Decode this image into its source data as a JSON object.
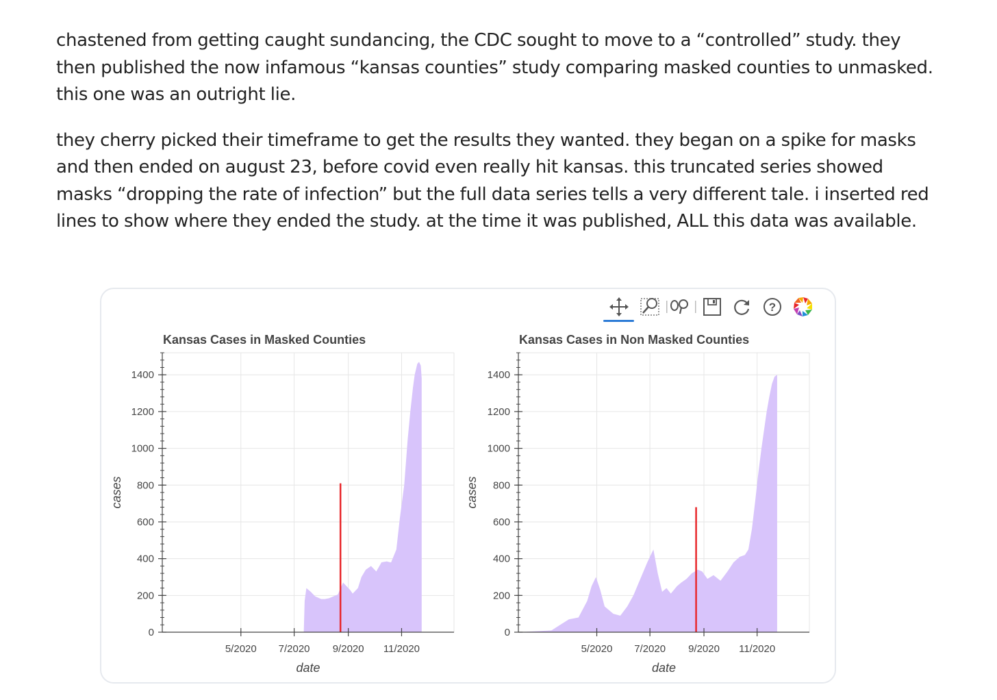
{
  "article": {
    "paragraphs": [
      "chastened from getting caught sundancing, the CDC sought to move to a “controlled” study. they then published the now infamous “kansas counties” study comparing masked counties to unmasked. this one was an outright lie.",
      "they cherry picked their timeframe to get the results they wanted. they began on a spike for masks and then ended on august 23, before covid even really hit kansas. this truncated series showed masks “dropping the rate of infection” but the full data series tells a very different tale. i inserted red lines to show where they ended the study. at the time it was published, ALL this data was available."
    ]
  },
  "toolbar": {
    "tools": [
      "pan-icon",
      "box-zoom-icon",
      "wheel-zoom-icon",
      "save-icon",
      "reset-icon",
      "help-icon",
      "bokeh-logo-icon"
    ],
    "active_tool": "pan-icon",
    "accent": "#2c7bd6"
  },
  "colors": {
    "area_fill": "#d8c4fb",
    "marker_line": "#e8262a",
    "grid": "#e6e6e6",
    "axis": "#444444"
  },
  "chart_data": [
    {
      "type": "area",
      "title": "Kansas Cases in Masked Counties",
      "xlabel": "date",
      "ylabel": "cases",
      "ylim": [
        0,
        1520
      ],
      "xlim": [
        "2020-02-01",
        "2020-12-31"
      ],
      "yticks": [
        0,
        200,
        400,
        600,
        800,
        1000,
        1200,
        1400
      ],
      "xticks": [
        {
          "date": "2020-05-01",
          "label": "5/2020"
        },
        {
          "date": "2020-07-01",
          "label": "7/2020"
        },
        {
          "date": "2020-09-01",
          "label": "9/2020"
        },
        {
          "date": "2020-11-01",
          "label": "11/2020"
        }
      ],
      "grid": true,
      "marker_line": {
        "date": "2020-08-23",
        "y_top": 810
      },
      "series": [
        {
          "x": [
            "2020-02-01",
            "2020-07-01",
            "2020-07-12",
            "2020-07-13",
            "2020-07-15",
            "2020-07-20",
            "2020-07-25",
            "2020-08-01",
            "2020-08-05",
            "2020-08-10",
            "2020-08-15",
            "2020-08-20",
            "2020-08-26",
            "2020-08-30",
            "2020-09-03",
            "2020-09-06",
            "2020-09-12",
            "2020-09-16",
            "2020-09-21",
            "2020-09-27",
            "2020-10-03",
            "2020-10-09",
            "2020-10-15",
            "2020-10-19",
            "2020-10-20",
            "2020-10-26",
            "2020-10-30",
            "2020-11-04",
            "2020-11-08",
            "2020-11-11",
            "2020-11-14",
            "2020-11-16",
            "2020-11-19",
            "2020-11-21",
            "2020-11-23",
            "2020-11-24"
          ],
          "y": [
            0,
            0,
            0,
            170,
            240,
            220,
            195,
            180,
            180,
            185,
            195,
            205,
            270,
            250,
            230,
            210,
            240,
            300,
            340,
            360,
            330,
            380,
            385,
            380,
            380,
            450,
            620,
            800,
            1050,
            1200,
            1330,
            1400,
            1460,
            1470,
            1450,
            1380
          ]
        }
      ]
    },
    {
      "type": "area",
      "title": "Kansas Cases in Non Masked Counties",
      "xlabel": "date",
      "ylabel": "cases",
      "ylim": [
        0,
        1520
      ],
      "xlim": [
        "2020-02-01",
        "2020-12-31"
      ],
      "yticks": [
        0,
        200,
        400,
        600,
        800,
        1000,
        1200,
        1400
      ],
      "xticks": [
        {
          "date": "2020-05-01",
          "label": "5/2020"
        },
        {
          "date": "2020-07-01",
          "label": "7/2020"
        },
        {
          "date": "2020-09-01",
          "label": "9/2020"
        },
        {
          "date": "2020-11-01",
          "label": "11/2020"
        }
      ],
      "grid": true,
      "marker_line": {
        "date": "2020-08-23",
        "y_top": 680
      },
      "series": [
        {
          "x": [
            "2020-02-01",
            "2020-03-10",
            "2020-03-20",
            "2020-03-30",
            "2020-04-10",
            "2020-04-20",
            "2020-04-25",
            "2020-04-30",
            "2020-05-05",
            "2020-05-10",
            "2020-05-15",
            "2020-05-20",
            "2020-05-28",
            "2020-06-05",
            "2020-06-12",
            "2020-06-20",
            "2020-06-28",
            "2020-07-05",
            "2020-07-10",
            "2020-07-15",
            "2020-07-20",
            "2020-07-25",
            "2020-08-01",
            "2020-08-06",
            "2020-08-12",
            "2020-08-18",
            "2020-08-25",
            "2020-08-30",
            "2020-09-05",
            "2020-09-12",
            "2020-09-20",
            "2020-09-28",
            "2020-10-05",
            "2020-10-12",
            "2020-10-18",
            "2020-10-22",
            "2020-10-26",
            "2020-10-30",
            "2020-11-02",
            "2020-11-06",
            "2020-11-09",
            "2020-11-12",
            "2020-11-15",
            "2020-11-18",
            "2020-11-21",
            "2020-11-24"
          ],
          "y": [
            0,
            10,
            40,
            70,
            80,
            170,
            250,
            300,
            230,
            140,
            120,
            100,
            90,
            140,
            200,
            290,
            380,
            450,
            320,
            220,
            240,
            210,
            250,
            270,
            290,
            320,
            340,
            330,
            290,
            310,
            280,
            330,
            380,
            410,
            420,
            450,
            560,
            720,
            850,
            1000,
            1100,
            1200,
            1280,
            1350,
            1390,
            1400
          ]
        }
      ]
    }
  ]
}
